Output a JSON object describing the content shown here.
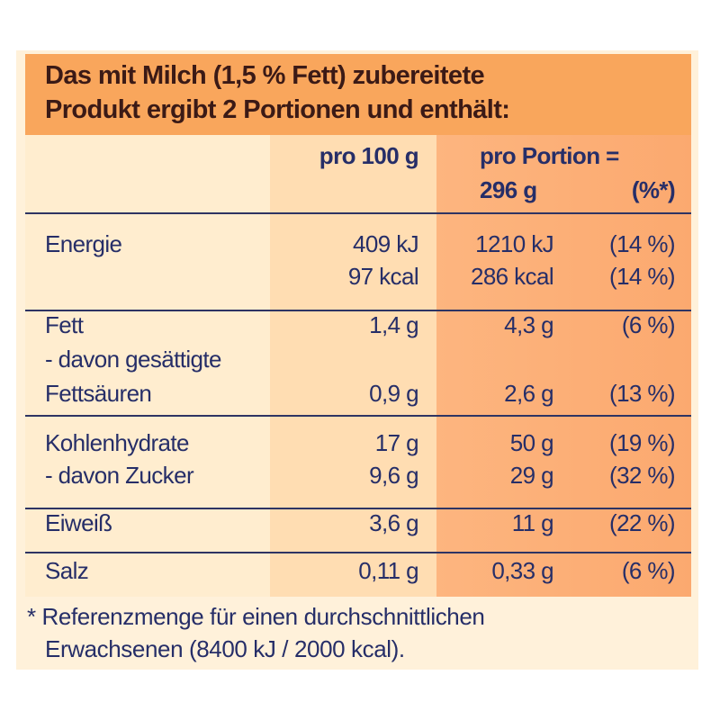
{
  "title_lines": [
    "Das mit Milch (1,5 % Fett) zubereitete",
    "Produkt ergibt 2 Portionen und enthält:"
  ],
  "header": {
    "per100": "pro 100 g",
    "portion_line1": "pro Portion =",
    "portion_line2": "296 g",
    "pct": "(%*)"
  },
  "rows": [
    {
      "lines": [
        {
          "label": "Energie",
          "per100": "409 kJ",
          "portion": "1210 kJ",
          "pct": "(14 %)"
        },
        {
          "label": "",
          "per100": "97 kcal",
          "portion": "286 kcal",
          "pct": "(14 %)"
        }
      ]
    },
    {
      "lines": [
        {
          "label": "Fett",
          "per100": "1,4 g",
          "portion": "4,3 g",
          "pct": "(6 %)"
        },
        {
          "label": "- davon gesättigte",
          "per100": "",
          "portion": "",
          "pct": ""
        },
        {
          "label": "Fettsäuren",
          "per100": "0,9 g",
          "portion": "2,6 g",
          "pct": "(13 %)"
        }
      ]
    },
    {
      "lines": [
        {
          "label": "Kohlenhydrate",
          "per100": "17 g",
          "portion": "50 g",
          "pct": "(19 %)"
        },
        {
          "label": "- davon Zucker",
          "per100": "9,6 g",
          "portion": "29 g",
          "pct": "(32 %)"
        }
      ]
    },
    {
      "lines": [
        {
          "label": "Eiweiß",
          "per100": "3,6 g",
          "portion": "11 g",
          "pct": "(22 %)"
        }
      ]
    },
    {
      "lines": [
        {
          "label": "Salz",
          "per100": "0,11 g",
          "portion": "0,33 g",
          "pct": "(6 %)"
        }
      ]
    }
  ],
  "footnote": [
    "* Referenzmenge für einen durchschnittlichen",
    "Erwachsenen (8400 kJ / 2000 kcal)."
  ],
  "colors": {
    "title_bg": "#F9A65C",
    "text": "#262E68",
    "title_text": "#3B1A16"
  }
}
